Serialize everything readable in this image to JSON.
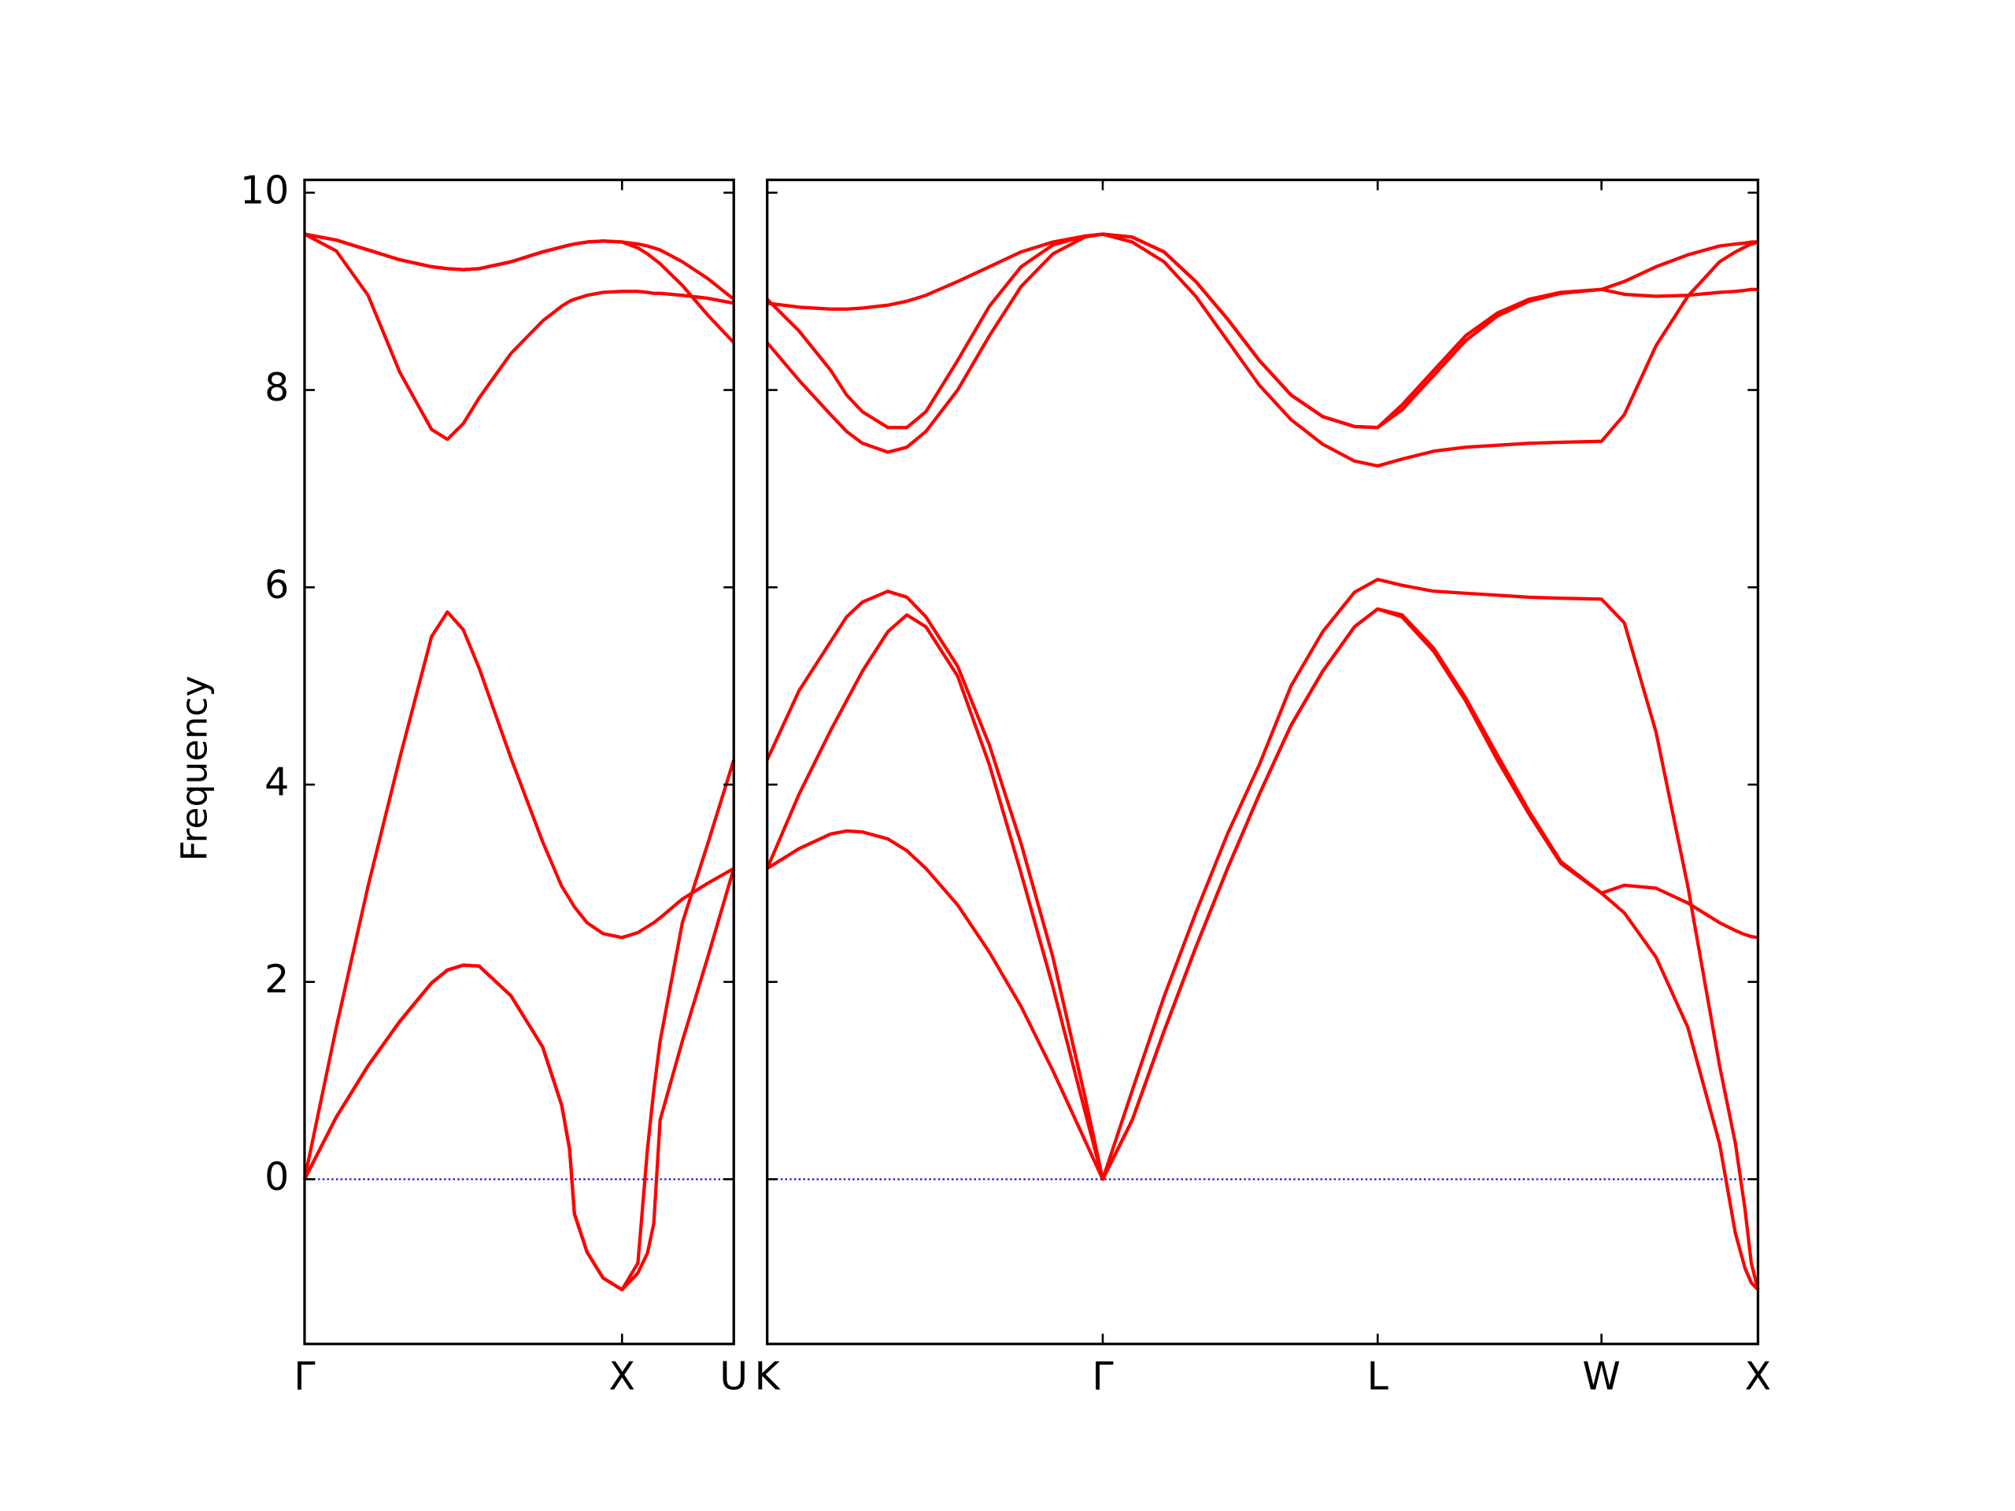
{
  "chart_data": [
    {
      "type": "line",
      "ylabel": "Frequency",
      "x": [
        0,
        0.1,
        0.2,
        0.3,
        0.4,
        0.45,
        0.5,
        0.55,
        0.65,
        0.75,
        0.81,
        0.835,
        0.85,
        0.89,
        0.94,
        1.0,
        1.05,
        1.08,
        1.1,
        1.12,
        1.19,
        1.27,
        1.352
      ],
      "series": [
        {
          "color": "#ff0000",
          "values": [
            0,
            0.63,
            1.15,
            1.6,
            1.99,
            2.12,
            2.17,
            2.16,
            1.86,
            1.34,
            0.75,
            0.3,
            -0.35,
            -0.74,
            -1.0,
            -1.12,
            -0.95,
            -0.75,
            -0.45,
            0.6,
            1.4,
            2.25,
            3.15
          ]
        },
        {
          "color": "#ff0000",
          "values": [
            0,
            0.63,
            1.15,
            1.6,
            1.99,
            2.12,
            2.17,
            2.16,
            1.86,
            1.34,
            0.75,
            0.3,
            -0.35,
            -0.74,
            -1.0,
            -1.12,
            -0.85,
            0.3,
            0.9,
            1.4,
            2.6,
            3.4,
            4.25
          ]
        },
        {
          "color": "#ff0000",
          "values": [
            0,
            1.54,
            2.97,
            4.27,
            5.5,
            5.75,
            5.57,
            5.18,
            4.27,
            3.42,
            2.97,
            2.84,
            2.76,
            2.6,
            2.49,
            2.45,
            2.5,
            2.56,
            2.6,
            2.65,
            2.84,
            3.0,
            3.15
          ]
        },
        {
          "color": "#ff0000",
          "values": [
            9.58,
            9.41,
            8.96,
            8.18,
            7.6,
            7.5,
            7.66,
            7.92,
            8.37,
            8.7,
            8.85,
            8.9,
            8.92,
            8.96,
            8.99,
            9.0,
            9.0,
            8.99,
            8.98,
            8.98,
            8.96,
            8.93,
            8.88
          ]
        },
        {
          "color": "#ff0000",
          "values": [
            9.58,
            9.52,
            9.42,
            9.32,
            9.25,
            9.23,
            9.22,
            9.23,
            9.3,
            9.4,
            9.45,
            9.47,
            9.48,
            9.5,
            9.51,
            9.5,
            9.44,
            9.38,
            9.33,
            9.28,
            9.06,
            8.76,
            8.48
          ]
        },
        {
          "color": "#ff0000",
          "values": [
            9.58,
            9.52,
            9.42,
            9.32,
            9.25,
            9.23,
            9.22,
            9.23,
            9.3,
            9.4,
            9.45,
            9.47,
            9.48,
            9.5,
            9.51,
            9.5,
            9.48,
            9.46,
            9.44,
            9.42,
            9.3,
            9.13,
            8.92
          ]
        }
      ],
      "xlim": [
        0,
        1.352
      ],
      "xticks": [
        {
          "value": 0,
          "label": "Γ"
        },
        {
          "value": 1,
          "label": "X"
        },
        {
          "value": 1.352,
          "label": "U"
        }
      ],
      "ylim": [
        -1.67,
        10.13
      ],
      "yticks": [
        0,
        2,
        4,
        6,
        8,
        10
      ],
      "show_ytick_labels": true,
      "hline": {
        "value": 0,
        "color": "#0000ff",
        "style": "dotted"
      }
    },
    {
      "type": "line",
      "x": [
        0,
        0.1,
        0.2,
        0.25,
        0.3,
        0.38,
        0.44,
        0.5,
        0.6,
        0.7,
        0.8,
        0.9,
        1.0,
        1.057,
        1.15,
        1.25,
        1.35,
        1.45,
        1.55,
        1.65,
        1.75,
        1.85,
        1.923,
        2.0,
        2.1,
        2.2,
        2.3,
        2.4,
        2.5,
        2.628,
        2.7,
        2.8,
        2.9,
        3.0,
        3.05,
        3.08,
        3.1,
        3.121
      ],
      "series": [
        {
          "color": "#ff0000",
          "values": [
            3.15,
            3.35,
            3.5,
            3.53,
            3.52,
            3.45,
            3.33,
            3.15,
            2.78,
            2.3,
            1.75,
            1.1,
            0.4,
            0,
            0.6,
            1.5,
            2.35,
            3.15,
            3.9,
            4.6,
            5.15,
            5.6,
            5.78,
            5.7,
            5.35,
            4.85,
            4.25,
            3.7,
            3.2,
            2.9,
            2.7,
            2.25,
            1.54,
            0.36,
            -0.55,
            -0.9,
            -1.05,
            -1.12
          ]
        },
        {
          "color": "#ff0000",
          "values": [
            3.15,
            3.9,
            4.55,
            4.85,
            5.15,
            5.55,
            5.72,
            5.6,
            5.1,
            4.2,
            3.1,
            1.95,
            0.7,
            0,
            0.6,
            1.5,
            2.35,
            3.15,
            3.9,
            4.6,
            5.15,
            5.6,
            5.78,
            5.72,
            5.38,
            4.88,
            4.3,
            3.73,
            3.22,
            2.9,
            2.98,
            2.95,
            2.8,
            2.6,
            2.52,
            2.48,
            2.46,
            2.45
          ]
        },
        {
          "color": "#ff0000",
          "values": [
            4.25,
            4.95,
            5.45,
            5.7,
            5.85,
            5.96,
            5.9,
            5.7,
            5.2,
            4.4,
            3.4,
            2.25,
            0.85,
            0,
            0.9,
            1.85,
            2.7,
            3.5,
            4.2,
            5.0,
            5.55,
            5.95,
            6.08,
            6.02,
            5.96,
            5.94,
            5.92,
            5.9,
            5.89,
            5.88,
            5.64,
            4.53,
            2.97,
            1.15,
            0.36,
            -0.3,
            -0.85,
            -1.12
          ]
        },
        {
          "color": "#ff0000",
          "values": [
            8.48,
            8.1,
            7.75,
            7.58,
            7.46,
            7.37,
            7.42,
            7.58,
            8.0,
            8.55,
            9.05,
            9.38,
            9.55,
            9.58,
            9.5,
            9.3,
            8.95,
            8.5,
            8.05,
            7.7,
            7.45,
            7.28,
            7.23,
            7.3,
            7.38,
            7.42,
            7.44,
            7.46,
            7.47,
            7.48,
            7.75,
            8.45,
            8.95,
            9.3,
            9.4,
            9.45,
            9.48,
            9.5
          ]
        },
        {
          "color": "#ff0000",
          "values": [
            8.92,
            8.6,
            8.2,
            7.95,
            7.78,
            7.62,
            7.62,
            7.78,
            8.3,
            8.85,
            9.25,
            9.47,
            9.56,
            9.58,
            9.55,
            9.4,
            9.1,
            8.72,
            8.3,
            7.95,
            7.73,
            7.63,
            7.62,
            7.8,
            8.15,
            8.5,
            8.75,
            8.9,
            8.98,
            9.02,
            8.97,
            8.95,
            8.96,
            8.99,
            9.0,
            9.01,
            9.02,
            9.02
          ]
        },
        {
          "color": "#ff0000",
          "values": [
            8.88,
            8.84,
            8.82,
            8.82,
            8.83,
            8.86,
            8.9,
            8.96,
            9.1,
            9.25,
            9.4,
            9.5,
            9.56,
            9.58,
            9.55,
            9.4,
            9.1,
            8.72,
            8.3,
            7.95,
            7.73,
            7.63,
            7.62,
            7.85,
            8.2,
            8.55,
            8.78,
            8.92,
            8.99,
            9.02,
            9.1,
            9.25,
            9.37,
            9.46,
            9.48,
            9.49,
            9.5,
            9.5
          ]
        }
      ],
      "xlim": [
        0,
        3.121
      ],
      "xticks": [
        {
          "value": 0,
          "label": "K"
        },
        {
          "value": 1.057,
          "label": "Γ"
        },
        {
          "value": 1.923,
          "label": "L"
        },
        {
          "value": 2.628,
          "label": "W"
        },
        {
          "value": 3.121,
          "label": "X"
        }
      ],
      "ylim": [
        -1.67,
        10.13
      ],
      "yticks": [
        0,
        2,
        4,
        6,
        8,
        10
      ],
      "show_ytick_labels": false,
      "hline": {
        "value": 0,
        "color": "#0000ff",
        "style": "dotted"
      }
    }
  ]
}
